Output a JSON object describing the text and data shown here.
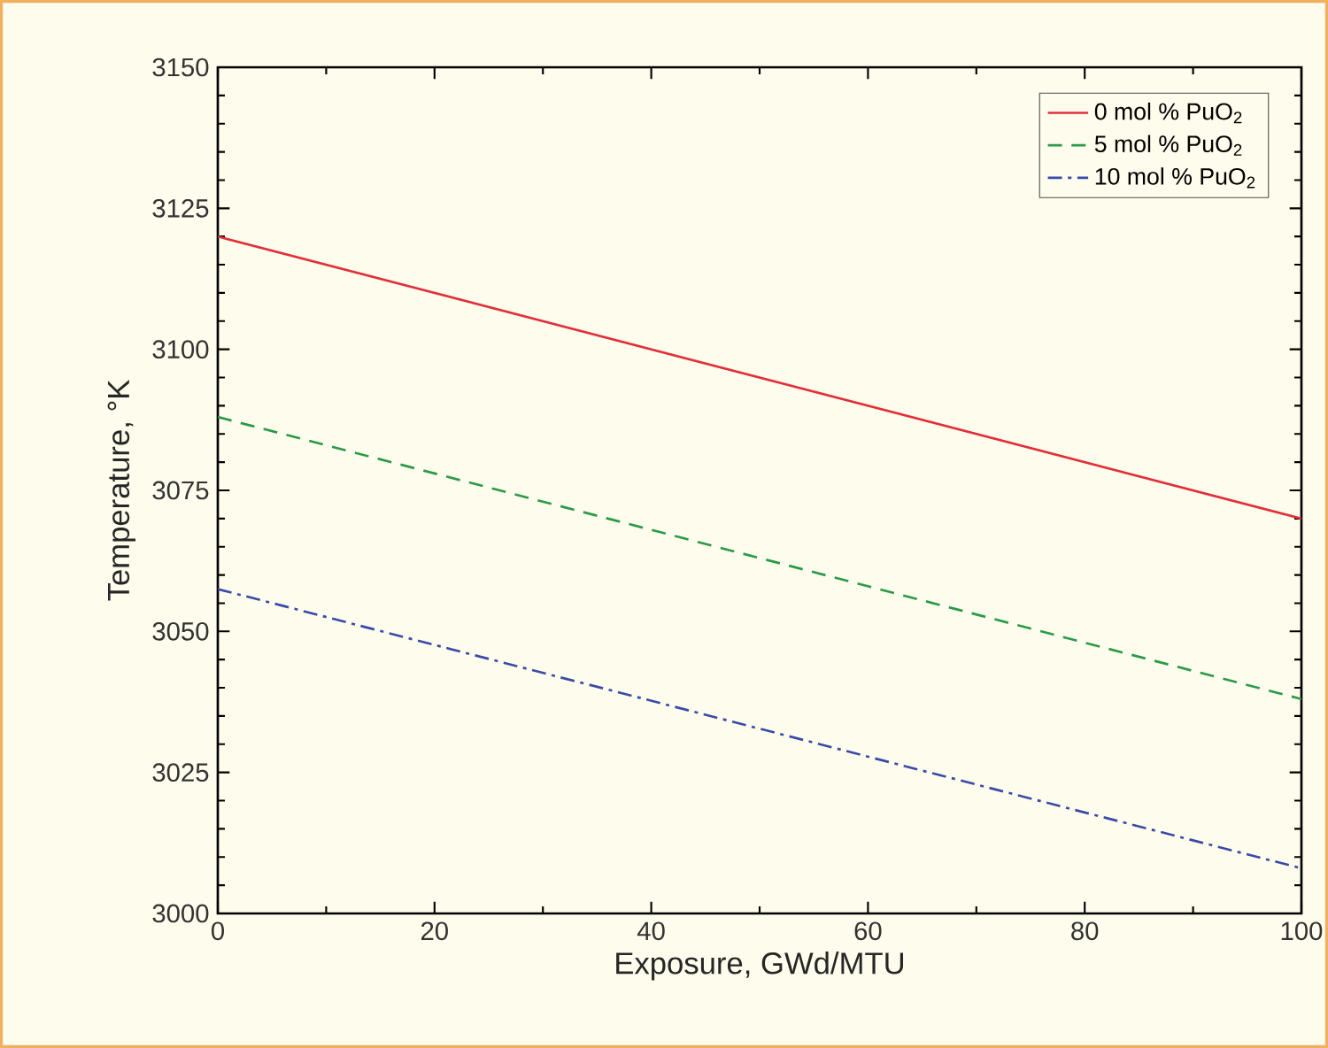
{
  "chart_data": {
    "type": "line",
    "xlabel": "Exposure, GWd/MTU",
    "ylabel": "Temperature, °K",
    "x": [
      0,
      100
    ],
    "series": [
      {
        "name": "0 mol % PuO$_{2}$",
        "color": "#e0303a",
        "line_style": "solid",
        "values": [
          3120,
          3070
        ]
      },
      {
        "name": "5 mol % PuO$_{2}$",
        "color": "#2a9a48",
        "line_style": "dashed",
        "values": [
          3088,
          3038
        ]
      },
      {
        "name": "10 mol % PuO$_{2}$",
        "color": "#3a4aa8",
        "line_style": "dashdot",
        "values": [
          3057.5,
          3008
        ]
      }
    ],
    "xlim": [
      0,
      100
    ],
    "xticks": [
      0,
      20,
      40,
      60,
      80,
      100
    ],
    "ylim": [
      3000,
      3150
    ],
    "yticks": [
      3000,
      3025,
      3050,
      3075,
      3100,
      3125,
      3150
    ],
    "grid": false,
    "legend": "top right",
    "marker": "none"
  }
}
